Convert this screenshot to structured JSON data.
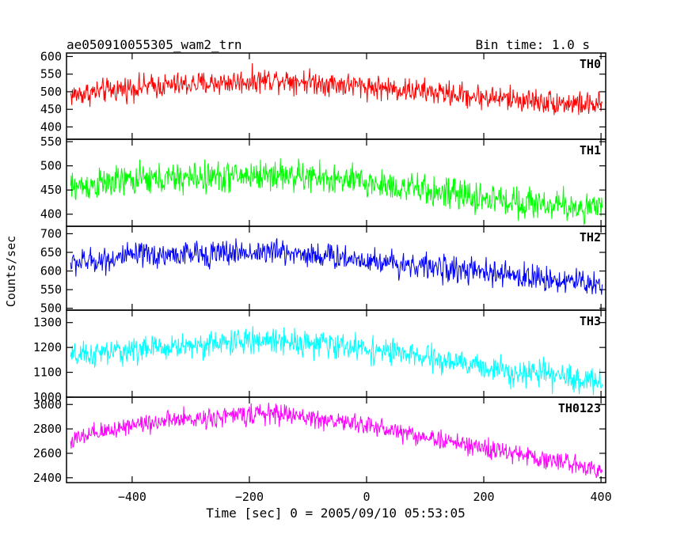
{
  "chart_data": {
    "type": "line",
    "title": "ae050910055305_wam2_trn",
    "bin_time": "Bin time: 1.0 s",
    "xlabel": "Time [sec] 0 = 2005/09/10 05:53:05",
    "ylabel": "Counts/sec",
    "xlim": [
      -512,
      408
    ],
    "x_ticks": [
      -400,
      -200,
      0,
      200,
      400
    ],
    "x_tick_labels": [
      "−400",
      "−200",
      "0",
      "200",
      "400"
    ],
    "x_range": [
      -505,
      402
    ],
    "bin": 1.0,
    "grid": false,
    "panels": [
      {
        "name": "TH0",
        "color": "#ff0000",
        "ylim": [
          365,
          610
        ],
        "yticks": [
          400,
          450,
          500,
          550,
          600
        ],
        "trend": [
          [
            -505,
            490
          ],
          [
            -400,
            512
          ],
          [
            -200,
            530
          ],
          [
            -150,
            536
          ],
          [
            0,
            515
          ],
          [
            200,
            485
          ],
          [
            402,
            460
          ]
        ],
        "noise": 30
      },
      {
        "name": "TH1",
        "color": "#00ff00",
        "ylim": [
          375,
          555
        ],
        "yticks": [
          400,
          450,
          500,
          550
        ],
        "trend": [
          [
            -505,
            455
          ],
          [
            -400,
            470
          ],
          [
            -200,
            480
          ],
          [
            -150,
            482
          ],
          [
            0,
            465
          ],
          [
            200,
            432
          ],
          [
            402,
            410
          ]
        ],
        "noise": 28
      },
      {
        "name": "TH2",
        "color": "#0000ff",
        "ylim": [
          495,
          720
        ],
        "yticks": [
          500,
          550,
          600,
          650,
          700
        ],
        "trend": [
          [
            -505,
            620
          ],
          [
            -400,
            640
          ],
          [
            -200,
            650
          ],
          [
            -150,
            652
          ],
          [
            0,
            630
          ],
          [
            200,
            595
          ],
          [
            402,
            565
          ]
        ],
        "noise": 30
      },
      {
        "name": "TH3",
        "color": "#00ffff",
        "ylim": [
          1000,
          1350
        ],
        "yticks": [
          1000,
          1100,
          1200,
          1300
        ],
        "trend": [
          [
            -505,
            1160
          ],
          [
            -400,
            1190
          ],
          [
            -200,
            1225
          ],
          [
            -150,
            1230
          ],
          [
            0,
            1195
          ],
          [
            200,
            1120
          ],
          [
            402,
            1060
          ]
        ],
        "noise": 45
      },
      {
        "name": "TH0123",
        "color": "#ff00ff",
        "ylim": [
          2360,
          3060
        ],
        "yticks": [
          2400,
          2600,
          2800,
          3000
        ],
        "trend": [
          [
            -505,
            2700
          ],
          [
            -400,
            2840
          ],
          [
            -200,
            2920
          ],
          [
            -150,
            2925
          ],
          [
            0,
            2830
          ],
          [
            200,
            2640
          ],
          [
            402,
            2470
          ]
        ],
        "noise": 70
      }
    ]
  }
}
